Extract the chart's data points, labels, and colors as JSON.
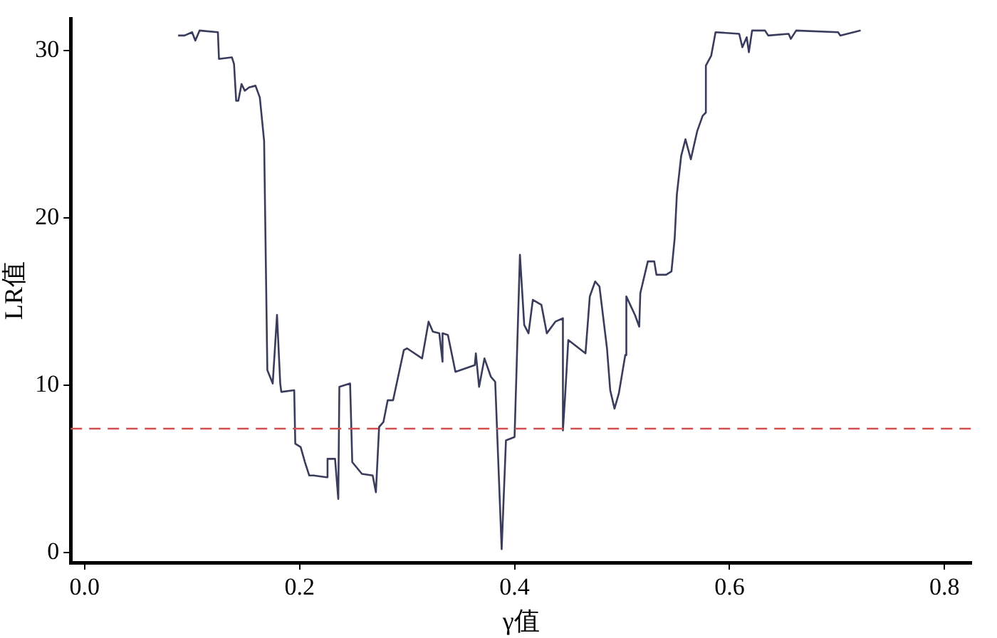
{
  "chart_data": {
    "type": "line",
    "xlabel": "γ值",
    "ylabel": "LR值",
    "xlim": [
      -0.013,
      0.825
    ],
    "ylim": [
      -0.6,
      31.9
    ],
    "xticks": [
      {
        "value": 0,
        "label": "0.0"
      },
      {
        "value": 0.2,
        "label": "0.2"
      },
      {
        "value": 0.4,
        "label": "0.4"
      },
      {
        "value": 0.6,
        "label": "0.6"
      },
      {
        "value": 0.8,
        "label": "0.8"
      }
    ],
    "yticks": [
      0,
      10,
      20,
      30
    ],
    "grid": false,
    "legend": false,
    "marker": "none",
    "line_style": "solid",
    "ref_lines": [
      {
        "axis": "y",
        "value": 7.4,
        "color": "#d05050",
        "line_style": "dashed"
      }
    ],
    "series": [
      {
        "color": "#3a3c5c",
        "x": [
          0.087,
          0.093,
          0.1,
          0.103,
          0.107,
          0.124,
          0.125,
          0.137,
          0.139,
          0.141,
          0.143,
          0.146,
          0.149,
          0.153,
          0.159,
          0.163,
          0.167,
          0.17,
          0.175,
          0.179,
          0.182,
          0.183,
          0.195,
          0.196,
          0.201,
          0.205,
          0.209,
          0.213,
          0.225,
          0.226,
          0.233,
          0.236,
          0.237,
          0.247,
          0.249,
          0.258,
          0.268,
          0.271,
          0.274,
          0.278,
          0.282,
          0.287,
          0.297,
          0.3,
          0.314,
          0.32,
          0.324,
          0.33,
          0.333,
          0.333,
          0.338,
          0.345,
          0.363,
          0.364,
          0.367,
          0.372,
          0.378,
          0.382,
          0.388,
          0.392,
          0.4,
          0.405,
          0.409,
          0.413,
          0.417,
          0.425,
          0.43,
          0.438,
          0.445,
          0.445,
          0.447,
          0.45,
          0.466,
          0.47,
          0.475,
          0.479,
          0.486,
          0.489,
          0.493,
          0.497,
          0.503,
          0.504,
          0.512,
          0.516,
          0.517,
          0.524,
          0.53,
          0.532,
          0.541,
          0.546,
          0.549,
          0.551,
          0.555,
          0.559,
          0.564,
          0.57,
          0.575,
          0.578,
          0.578,
          0.583,
          0.587,
          0.609,
          0.612,
          0.616,
          0.618,
          0.621,
          0.633,
          0.636,
          0.655,
          0.657,
          0.662,
          0.701,
          0.703,
          0.722
        ],
        "values": [
          30.9,
          30.9,
          31.1,
          30.6,
          31.2,
          31.1,
          29.5,
          29.6,
          29.2,
          27.0,
          27.0,
          28.0,
          27.6,
          27.8,
          27.9,
          27.2,
          24.6,
          10.9,
          10.1,
          14.2,
          10.1,
          9.6,
          9.7,
          6.5,
          6.3,
          5.4,
          4.6,
          4.6,
          4.5,
          5.6,
          5.6,
          3.2,
          9.9,
          10.1,
          5.4,
          4.7,
          4.6,
          3.6,
          7.5,
          7.8,
          9.1,
          9.1,
          12.1,
          12.2,
          11.6,
          13.8,
          13.2,
          13.1,
          11.4,
          13.1,
          13.0,
          10.8,
          11.2,
          11.9,
          9.9,
          11.6,
          10.5,
          10.2,
          0.2,
          6.7,
          6.9,
          17.8,
          13.6,
          13.1,
          15.1,
          14.8,
          13.1,
          13.8,
          14.0,
          7.3,
          9.3,
          12.7,
          11.9,
          15.3,
          16.2,
          15.9,
          12.2,
          9.7,
          8.6,
          9.5,
          11.8,
          15.3,
          14.2,
          13.5,
          15.5,
          17.4,
          17.4,
          16.6,
          16.6,
          16.8,
          18.8,
          21.4,
          23.7,
          24.7,
          23.5,
          25.2,
          26.1,
          26.3,
          29.1,
          29.7,
          31.1,
          31.0,
          30.2,
          30.8,
          29.9,
          31.2,
          31.2,
          30.9,
          31.0,
          30.7,
          31.2,
          31.1,
          30.9,
          31.2
        ]
      }
    ]
  }
}
